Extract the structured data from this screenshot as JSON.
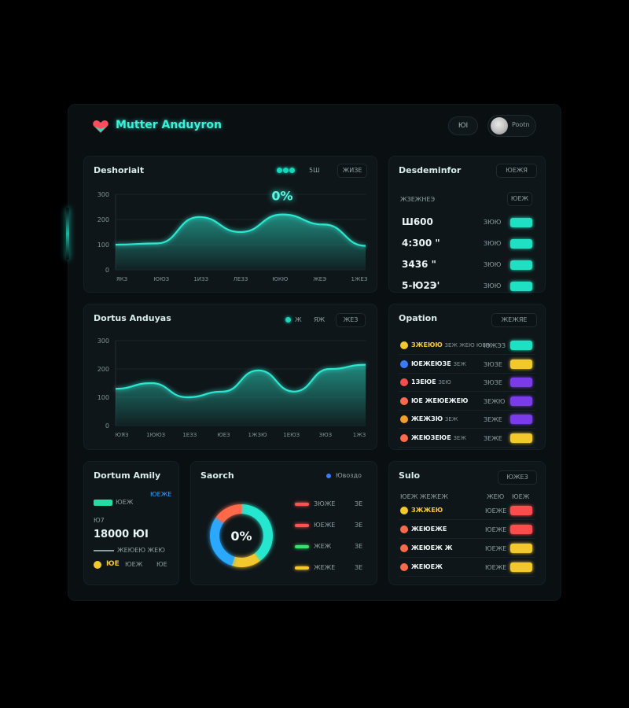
{
  "app": {
    "title": "Mutter Anduyron",
    "header_button": "ЮІ",
    "user_name": "Pootn"
  },
  "dashboard": {
    "title": "Deshoriait",
    "pill_a": "5Ш",
    "pill_b": "ЖИЗЕ",
    "peak_label": "0%",
    "y_ticks": [
      "300",
      "200",
      "100",
      "0"
    ],
    "x_ticks": [
      "ЯКЗ",
      "ЮЮЗ",
      "1ИЗЗ",
      "ЛЕЗЗ",
      "ЮКЮ",
      "ЖЕЭ",
      "1ЖЕЗ"
    ],
    "chart_data": {
      "type": "area",
      "x": [
        "ЯКЗ",
        "ЮЮЗ",
        "1ИЗЗ",
        "ЛЕЗЗ",
        "ЮКЮ",
        "ЖЕЭ",
        "1ЖЕЗ"
      ],
      "y": [
        100,
        105,
        210,
        150,
        220,
        180,
        95
      ],
      "ylim": [
        0,
        300
      ],
      "color": "#2ee6cf"
    }
  },
  "dortus": {
    "title": "Dortus Anduyas",
    "legend_value": "Ж",
    "pill_a": "ЯЖ",
    "pill_b": "ЖЕЗ",
    "y_ticks": [
      "300",
      "200",
      "100",
      "0"
    ],
    "x_ticks": [
      "ЮЯЗ",
      "1ЮЮЗ",
      "1ЕЗЗ",
      "ЮЕЗ",
      "1ЖЗЮ",
      "1ЕЮЗ",
      "ЗЮЗ",
      "1ЖЗ"
    ],
    "chart_data": {
      "type": "area",
      "x": [
        "ЮЯЗ",
        "1ЮЮЗ",
        "1ЕЗЗ",
        "ЮЕЗ",
        "1ЖЗЮ",
        "1ЕЮЗ",
        "ЗЮЗ",
        "1ЖЗ"
      ],
      "y": [
        130,
        150,
        100,
        120,
        195,
        120,
        200,
        215
      ],
      "ylim": [
        0,
        300
      ],
      "color": "#2ee6cf"
    }
  },
  "deschainfor": {
    "title": "Desdeminfor",
    "pill": "ЮЕЖЯ",
    "head_label": "ЖЗЕЖНЕЭ",
    "head_pill": "ЮЕЖ",
    "rows": [
      {
        "value": "Ш600",
        "mid": "ЗЮЮ",
        "badge": ""
      },
      {
        "value": "4:300 \"",
        "mid": "ЗЮЮ",
        "badge": ""
      },
      {
        "value": "3436 \"",
        "mid": "ЗЮЮ",
        "badge": ""
      },
      {
        "value": "5-Ю2Э'",
        "mid": "ЗЮЮ",
        "badge": ""
      }
    ],
    "badge_color": "#1fe0c2"
  },
  "opation": {
    "title": "Opation",
    "pill": "ЖЕЖЯЕ",
    "rows": [
      {
        "name": "ЗЖЕЮЮ",
        "detail": "ЗЕЖ ЖЕЮ ЮЕЖ",
        "mid": "ЮЖЭЗ",
        "color": "#1fe0c2"
      },
      {
        "name": "ЮЕЖЕЮЗЕ",
        "detail": "ЗЕЖ",
        "mid": "ЗЮЗЕ",
        "color": "#f2c92c"
      },
      {
        "name": "1ЗЕЮЕ",
        "detail": "ЗЕЮ",
        "mid": "ЗЮЗЕ",
        "color": "#7a3ce8"
      },
      {
        "name": "ЮЕ ЖЕЮЕЖЕЮ",
        "detail": "",
        "mid": "ЗЕЖЮ",
        "color": "#7a3ce8"
      },
      {
        "name": "ЖЕЖЗЮ",
        "detail": "ЗЕЖ",
        "mid": "ЗЕЖЕ",
        "color": "#7a3ce8"
      },
      {
        "name": "ЖЕЮЗЕЮЕ",
        "detail": "ЗЕЖ",
        "mid": "ЗЕЖЕ",
        "color": "#f2c92c"
      }
    ]
  },
  "dortum_amily": {
    "title": "Dortum Amily",
    "pill": "ЮЕЖЕ",
    "label_a": "ЮЕЖ",
    "label_b": "Ю7",
    "line_text": "ЖЕЮЕЮ  ЖЕЮ",
    "value": "18000 ЮІ",
    "bottom_a": "ЮЕ",
    "bottom_b": "ЮЕЖ",
    "bottom_c": "ЮЕ"
  },
  "search": {
    "title": "Saorch",
    "pill": "Ювоздо",
    "center_label": "0%",
    "chart_data": {
      "type": "pie",
      "labels": [
        "ЗЮЖЕ",
        "ЮЕЖЕ",
        "ЖЕЖ",
        "ЖЕЖЕ"
      ],
      "values": [
        40,
        15,
        30,
        15
      ],
      "colors": [
        "#25e6cf",
        "#f2c92c",
        "#2aa8ff",
        "#ff6b4a"
      ]
    },
    "legend": [
      {
        "label": "ЗЮЖЕ",
        "value": "ЗЕ",
        "color": "#ff5252"
      },
      {
        "label": "ЮЕЖЕ",
        "value": "ЗЕ",
        "color": "#ff5252"
      },
      {
        "label": "ЖЕЖ",
        "value": "ЗЕ",
        "color": "#2ee66b"
      },
      {
        "label": "ЖЕЖЕ",
        "value": "ЗЕ",
        "color": "#f2c92c"
      }
    ]
  },
  "sulo": {
    "title": "Sulo",
    "pill": "ЮЖЕЗ",
    "header": [
      "ЮЕЖ ЖЕЖЕЖ",
      "ЖЕЮ",
      "ЮЕЖ"
    ],
    "rows": [
      {
        "name": "ЗЖЖЕЮ",
        "mid": "ЮЕЖЕ",
        "color": "#ff4d4d",
        "icon_color": "#f2c92c"
      },
      {
        "name": "ЖЕЮЕЖЕ",
        "mid": "ЮЕЖЕ",
        "color": "#ff4d4d",
        "icon_color": "#ff6b4a"
      },
      {
        "name": "ЖЕЮЕЖ Ж",
        "mid": "ЮЕЖЕ",
        "color": "#f2c92c",
        "icon_color": "#ff6b4a"
      },
      {
        "name": "ЖЕЮЕЖ",
        "mid": "ЮЕЖЕ",
        "color": "#f2c92c",
        "icon_color": "#ff6b4a"
      }
    ]
  }
}
